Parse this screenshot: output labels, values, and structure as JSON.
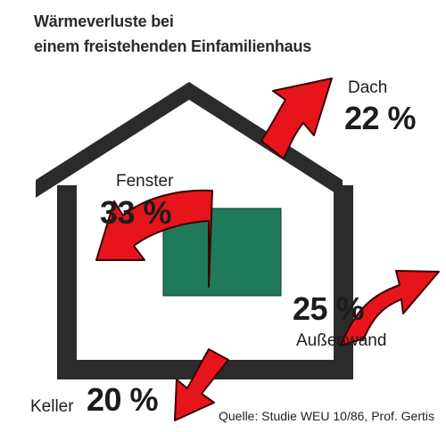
{
  "title_line1": "Wärmeverluste bei",
  "title_line2": "einem freistehenden Einfamilienhaus",
  "items": [
    {
      "name": "Dach",
      "percent": "22 %"
    },
    {
      "name": "Fenster",
      "percent": "33 %"
    },
    {
      "name": "Außenwand",
      "percent": "25 %"
    },
    {
      "name": "Keller",
      "percent": "20 %"
    }
  ],
  "source": "Quelle: Studie WEU 10/86, Prof. Gertis",
  "colors": {
    "house": "#2b2b2b",
    "window": "#1f7a5c",
    "arrow": "#e8141b",
    "arrow_edge": "#3a0000"
  }
}
